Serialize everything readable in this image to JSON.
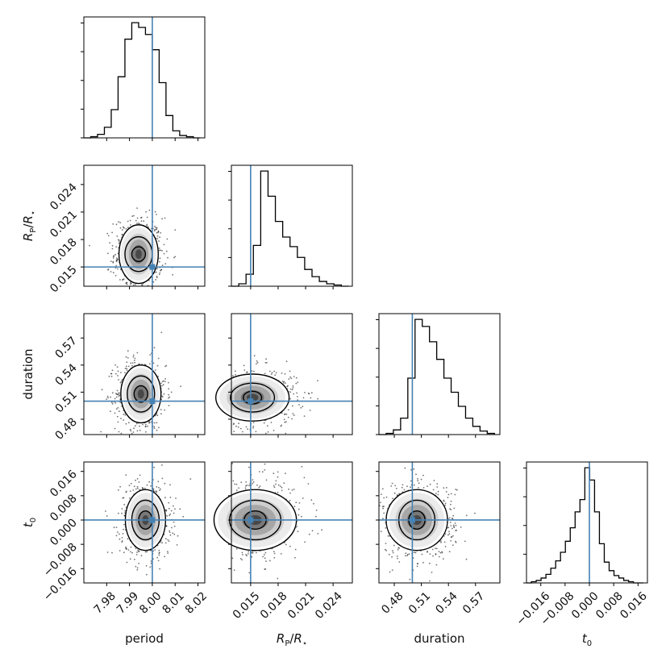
{
  "chart_data": {
    "type": "corner",
    "parameters": [
      {
        "key": "period",
        "label": "period",
        "range": [
          7.97,
          8.023
        ],
        "ticks": [
          7.98,
          7.99,
          8.0,
          8.01,
          8.02
        ],
        "tick_labels": [
          "7.98",
          "7.99",
          "8.00",
          "8.01",
          "8.02"
        ],
        "truth": 8.0
      },
      {
        "key": "rp_rs",
        "label": "R_P/R_⋆",
        "range": [
          0.0129,
          0.0261
        ],
        "ticks": [
          0.015,
          0.018,
          0.021,
          0.024
        ],
        "tick_labels": [
          "0.015",
          "0.018",
          "0.021",
          "0.024"
        ],
        "truth": 0.015
      },
      {
        "key": "duration",
        "label": "duration",
        "range": [
          0.463,
          0.597
        ],
        "ticks": [
          0.48,
          0.51,
          0.54,
          0.57
        ],
        "tick_labels": [
          "0.48",
          "0.51",
          "0.54",
          "0.57"
        ],
        "truth": 0.5
      },
      {
        "key": "t0",
        "label": "t_0",
        "range": [
          -0.0207,
          0.0191
        ],
        "ticks": [
          -0.016,
          -0.008,
          0.0,
          0.008,
          0.016
        ],
        "tick_labels": [
          "−0.016",
          "−0.008",
          "0.000",
          "0.008",
          "0.016"
        ],
        "truth": 0.0
      }
    ],
    "marginals": [
      {
        "param": "period",
        "bins": [
          7.97,
          7.973,
          7.976,
          7.979,
          7.982,
          7.985,
          7.988,
          7.991,
          7.994,
          7.997,
          8.0,
          8.003,
          8.006,
          8.009,
          8.012,
          8.015,
          8.018,
          8.021
        ],
        "counts": [
          0,
          1,
          3,
          9,
          24,
          52,
          84,
          98,
          94,
          88,
          75,
          47,
          19,
          6,
          2,
          1,
          0
        ]
      },
      {
        "param": "rp_rs",
        "bins": [
          0.0129,
          0.0137,
          0.0145,
          0.0153,
          0.0161,
          0.0169,
          0.0177,
          0.0185,
          0.0193,
          0.0201,
          0.0209,
          0.0217,
          0.0225,
          0.0233,
          0.0241,
          0.0249,
          0.0257
        ],
        "counts": [
          0,
          2,
          10,
          34,
          96,
          75,
          54,
          41,
          33,
          24,
          14,
          8,
          4,
          2,
          1,
          0
        ]
      },
      {
        "param": "duration",
        "bins": [
          0.463,
          0.471,
          0.479,
          0.487,
          0.495,
          0.503,
          0.511,
          0.519,
          0.527,
          0.535,
          0.543,
          0.551,
          0.559,
          0.567,
          0.575,
          0.583,
          0.591
        ],
        "counts": [
          0,
          1,
          4,
          14,
          48,
          98,
          92,
          79,
          64,
          48,
          36,
          24,
          14,
          7,
          3,
          1
        ]
      },
      {
        "param": "t0",
        "bins": [
          -0.0207,
          -0.0191,
          -0.0175,
          -0.0159,
          -0.0143,
          -0.0127,
          -0.0111,
          -0.0095,
          -0.0079,
          -0.0063,
          -0.0047,
          -0.0031,
          -0.0015,
          0.0001,
          0.0017,
          0.0033,
          0.0049,
          0.0065,
          0.0081,
          0.0097,
          0.0113,
          0.0129,
          0.0145,
          0.0161,
          0.0177
        ],
        "counts": [
          0,
          1,
          2,
          4,
          7,
          12,
          18,
          25,
          34,
          45,
          58,
          68,
          94,
          84,
          58,
          32,
          17,
          10,
          6,
          4,
          2,
          1,
          0,
          0
        ]
      }
    ],
    "joint_modes": [
      {
        "x": "period",
        "y": "rp_rs",
        "mode": [
          7.994,
          0.0164
        ],
        "contours": [
          {
            "level": 0.39,
            "rx": 0.003,
            "ry": 0.0008
          },
          {
            "level": 0.86,
            "rx": 0.006,
            "ry": 0.0019
          },
          {
            "level": 0.99,
            "rx": 0.0086,
            "ry": 0.0032
          }
        ]
      },
      {
        "x": "period",
        "y": "duration",
        "mode": [
          7.995,
          0.508
        ],
        "contours": [
          {
            "level": 0.39,
            "rx": 0.003,
            "ry": 0.009
          },
          {
            "level": 0.86,
            "rx": 0.006,
            "ry": 0.02
          },
          {
            "level": 0.99,
            "rx": 0.0088,
            "ry": 0.032
          }
        ]
      },
      {
        "x": "rp_rs",
        "y": "duration",
        "mode": [
          0.0152,
          0.504
        ],
        "contours": [
          {
            "level": 0.39,
            "rx": 0.001,
            "ry": 0.007
          },
          {
            "level": 0.86,
            "rx": 0.0024,
            "ry": 0.016
          },
          {
            "level": 0.99,
            "rx": 0.004,
            "ry": 0.026
          }
        ]
      },
      {
        "x": "period",
        "y": "t0",
        "mode": [
          7.997,
          0.0
        ],
        "contours": [
          {
            "level": 0.39,
            "rx": 0.003,
            "ry": 0.003
          },
          {
            "level": 0.86,
            "rx": 0.006,
            "ry": 0.0065
          },
          {
            "level": 0.99,
            "rx": 0.0088,
            "ry": 0.01
          }
        ]
      },
      {
        "x": "rp_rs",
        "y": "t0",
        "mode": [
          0.0155,
          0.0
        ],
        "contours": [
          {
            "level": 0.39,
            "rx": 0.0012,
            "ry": 0.003
          },
          {
            "level": 0.86,
            "rx": 0.0028,
            "ry": 0.0065
          },
          {
            "level": 0.99,
            "rx": 0.0045,
            "ry": 0.01
          }
        ]
      },
      {
        "x": "duration",
        "y": "t0",
        "mode": [
          0.505,
          0.0
        ],
        "contours": [
          {
            "level": 0.39,
            "rx": 0.009,
            "ry": 0.003
          },
          {
            "level": 0.86,
            "rx": 0.02,
            "ry": 0.0065
          },
          {
            "level": 0.99,
            "rx": 0.034,
            "ry": 0.01
          }
        ]
      }
    ],
    "truth_color": "#4682b4",
    "grid": false,
    "legend": "none"
  }
}
